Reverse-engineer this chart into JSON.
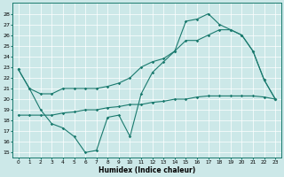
{
  "xlabel": "Humidex (Indice chaleur)",
  "bg_color": "#cce8e8",
  "line_color": "#1a7a6e",
  "xlim": [
    -0.5,
    23.5
  ],
  "ylim": [
    14.5,
    29
  ],
  "yticks": [
    15,
    16,
    17,
    18,
    19,
    20,
    21,
    22,
    23,
    24,
    25,
    26,
    27,
    28
  ],
  "xticks": [
    0,
    1,
    2,
    3,
    4,
    5,
    6,
    7,
    8,
    9,
    10,
    11,
    12,
    13,
    14,
    15,
    16,
    17,
    18,
    19,
    20,
    21,
    22,
    23
  ],
  "line1_x": [
    0,
    1,
    2,
    3,
    4,
    5,
    6,
    7,
    8,
    9,
    10,
    11,
    12,
    13,
    14,
    15,
    16,
    17,
    18,
    19,
    20,
    21,
    22,
    23
  ],
  "line1_y": [
    22.8,
    21.0,
    19.0,
    17.7,
    17.3,
    16.5,
    15.0,
    15.2,
    18.3,
    18.5,
    16.5,
    20.5,
    22.5,
    23.5,
    24.5,
    27.3,
    27.5,
    28.0,
    27.0,
    26.5,
    26.0,
    24.5,
    21.8,
    20.0
  ],
  "line2_x": [
    0,
    1,
    2,
    3,
    4,
    5,
    6,
    7,
    8,
    9,
    10,
    11,
    12,
    13,
    14,
    15,
    16,
    17,
    18,
    19,
    20,
    21,
    22,
    23
  ],
  "line2_y": [
    22.8,
    21.0,
    20.5,
    20.5,
    21.0,
    21.0,
    21.0,
    21.0,
    21.2,
    21.5,
    22.0,
    23.0,
    23.5,
    23.8,
    24.5,
    25.5,
    25.5,
    26.0,
    26.5,
    26.5,
    26.0,
    24.5,
    21.8,
    20.0
  ],
  "line3_x": [
    0,
    1,
    2,
    3,
    4,
    5,
    6,
    7,
    8,
    9,
    10,
    11,
    12,
    13,
    14,
    15,
    16,
    17,
    18,
    19,
    20,
    21,
    22,
    23
  ],
  "line3_y": [
    18.5,
    18.5,
    18.5,
    18.5,
    18.7,
    18.8,
    19.0,
    19.0,
    19.2,
    19.3,
    19.5,
    19.5,
    19.7,
    19.8,
    20.0,
    20.0,
    20.2,
    20.3,
    20.3,
    20.3,
    20.3,
    20.3,
    20.2,
    20.0
  ]
}
